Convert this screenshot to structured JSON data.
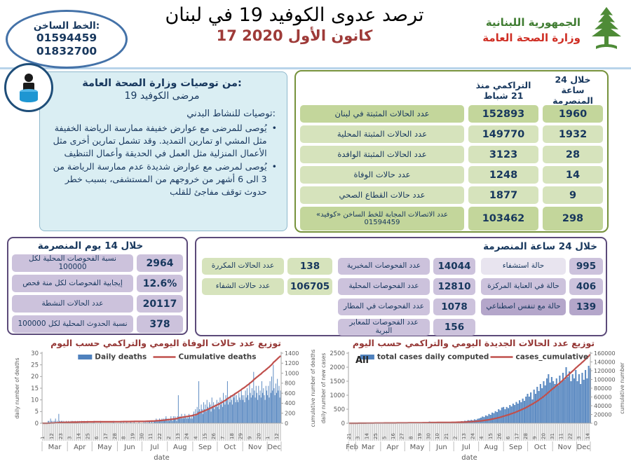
{
  "header": {
    "hotline": {
      "label": "الخط الساخن:",
      "numbers": [
        "01594459",
        "01832700"
      ]
    },
    "title": "ترصد عدوى الكوفيد 19 في لبنان",
    "date": "17 كانون الأول 2020",
    "ministry": {
      "line1": "الجمهورية اللبنانية",
      "line2": "وزارة الصحة العامة"
    }
  },
  "recommendations": {
    "title1": "من توصيات وزارة الصحة العامة:",
    "title2": "مرضى الكوفيد 19",
    "subtitle": "توصيات للنشاط البدني:",
    "bullet_mark": "•",
    "bullets": [
      "يُوصى للمرضى مع عوارض خفيفة ممارسة الرياضة الخفيفة مثل المشي او تمارين التمديد. وقد تشمل تمارين أخرى مثل الأعمال المنزلية مثل العمل في الحديقة وأعمال التنظيف",
      "يُوصى لمرضى مع عوارض شديدة عدم ممارسة الرياضة من 3 الى 6 أشهر من خروجهم من المستشفى، بسبب خطر حدوث توقف مفاجئ للقلب"
    ]
  },
  "stats_table": {
    "col_cumulative": "التراكمي منذ 21 شباط",
    "col_24h": "خلال 24 ساعة المنصرمة",
    "rows": [
      {
        "label": "عدد الحالات المثبتة في لبنان",
        "cumulative": "152893",
        "last24h": "1960",
        "shade": "dark"
      },
      {
        "label": "عدد الحالات المثبتة المحلية",
        "cumulative": "149770",
        "last24h": "1932",
        "shade": "light"
      },
      {
        "label": "عدد الحالات المثبتة الوافدة",
        "cumulative": "3123",
        "last24h": "28",
        "shade": "light"
      },
      {
        "label": "عدد حالات الوفاة",
        "cumulative": "1248",
        "last24h": "14",
        "shade": "light"
      },
      {
        "label": "عدد حالات القطاع الصحي",
        "cumulative": "1877",
        "last24h": "9",
        "shade": "light"
      },
      {
        "label": "عدد الاتصالات المجابة للخط الساخن «كوفيد» 01594459",
        "cumulative": "103462",
        "last24h": "298",
        "shade": "dark"
      }
    ]
  },
  "panel_14d": {
    "title": "خلال 14 يوم المنصرمة",
    "rows": [
      {
        "label": "نسبة الفحوصات  المحلية لكل 100000",
        "value": "2964"
      },
      {
        "label": "إيجابية الفحوصات لكل منة فحص",
        "value": "12.6%"
      },
      {
        "label": "عدد الحالات النشطة",
        "value": "20117"
      },
      {
        "label": "نسبة الحدوث المحلية لكل 100000",
        "value": "378"
      }
    ]
  },
  "panel_24h": {
    "title": "خلال 24 ساعة المنصرمة",
    "recovery_rows": [
      {
        "label": "عدد الحالات المكررة",
        "value": "138"
      },
      {
        "label": "عدد حالات الشفاء",
        "value": "106705"
      }
    ],
    "test_rows": [
      {
        "label": "عدد الفحوصات المخبرية",
        "value": "14044"
      },
      {
        "label": "عدد الفحوصات المحلية",
        "value": "12810"
      },
      {
        "label": "عدد الفحوصات في المطار",
        "value": "1078"
      },
      {
        "label": "عدد الفحوصات للمعابر البرية",
        "value": "156"
      }
    ],
    "hospital_rows": [
      {
        "label": "حالة استشفاء",
        "value": "995",
        "label_shade": "lav-light",
        "value_shade": "lav-mid"
      },
      {
        "label": "حالة في العناية المركزة",
        "value": "406",
        "label_shade": "lav-mid",
        "value_shade": "lav-mid"
      },
      {
        "label": "حالة مع تنفس اصطناعي",
        "value": "139",
        "label_shade": "lav-dark",
        "value_shade": "lav-dark"
      }
    ]
  },
  "colors": {
    "green_dark": "#c3d69b",
    "green_light": "#d6e3bc",
    "green_border": "#76923c",
    "purple_border": "#5b4a79",
    "lavender": "#ccc2dc",
    "navy": "#17375d",
    "bar_blue": "#4f81bd",
    "line_red": "#c0504d",
    "chart_title_red": "#953735",
    "date_red": "#9e3a38",
    "ministry_green": "#3f7c31",
    "ministry_red": "#cf2e24"
  },
  "chart_data": [
    {
      "type": "bar+line",
      "title": "توزيع عدد حالات  الوفاة اليومي والتراكمي حسب اليوم",
      "legend": [
        {
          "name": "Daily deaths",
          "marker": "bar"
        },
        {
          "name": "Cumulative deaths",
          "marker": "line"
        }
      ],
      "ylabel": "daily number of deaths",
      "y2label": "cumulative number of deaths",
      "xlabel": "date",
      "ylim": [
        0,
        30
      ],
      "ystep": 5,
      "y2lim": [
        0,
        1400
      ],
      "y2step": 200,
      "tick_every": 11,
      "day_ticks": [
        "1",
        "12",
        "23",
        "3",
        "14",
        "25",
        "6",
        "17",
        "28",
        "8",
        "19",
        "30",
        "11",
        "22",
        "2",
        "13",
        "24",
        "4",
        "15",
        "26",
        "7",
        "18",
        "29",
        "9",
        "20",
        "1",
        "12"
      ],
      "months": [
        {
          "label": "Mar",
          "days": 31
        },
        {
          "label": "Apr",
          "days": 30
        },
        {
          "label": "May",
          "days": 31
        },
        {
          "label": "Jun",
          "days": 30
        },
        {
          "label": "Jul",
          "days": 31
        },
        {
          "label": "Aug",
          "days": 31
        },
        {
          "label": "Sep",
          "days": 30
        },
        {
          "label": "Oct",
          "days": 31
        },
        {
          "label": "Nov",
          "days": 30
        },
        {
          "label": "Dec",
          "days": 17
        }
      ],
      "sample_step": 1,
      "daily": [
        0,
        0,
        0,
        0,
        0,
        0,
        0,
        1,
        1,
        0,
        2,
        1,
        0,
        1,
        0,
        1,
        2,
        0,
        1,
        0,
        4,
        1,
        0,
        1,
        1,
        0,
        1,
        0,
        0,
        1,
        0,
        0,
        1,
        0,
        0,
        1,
        0,
        1,
        0,
        0,
        1,
        0,
        0,
        1,
        0,
        1,
        0,
        0,
        1,
        0,
        0,
        1,
        0,
        0,
        0,
        1,
        0,
        0,
        0,
        0,
        0,
        0,
        0,
        1,
        0,
        0,
        0,
        0,
        0,
        0,
        0,
        1,
        0,
        0,
        0,
        0,
        0,
        0,
        0,
        0,
        0,
        0,
        0,
        0,
        0,
        0,
        0,
        1,
        0,
        0,
        0,
        0,
        0,
        0,
        0,
        0,
        1,
        0,
        0,
        1,
        0,
        0,
        0,
        1,
        0,
        0,
        0,
        0,
        1,
        0,
        0,
        0,
        1,
        0,
        0,
        0,
        0,
        0,
        1,
        0,
        0,
        0,
        0,
        0,
        1,
        0,
        1,
        0,
        1,
        0,
        1,
        1,
        0,
        1,
        1,
        0,
        1,
        1,
        1,
        2,
        1,
        1,
        1,
        2,
        1,
        1,
        2,
        1,
        2,
        1,
        2,
        3,
        2,
        1,
        2,
        1,
        2,
        3,
        2,
        1,
        3,
        2,
        3,
        2,
        1,
        3,
        12,
        2,
        3,
        2,
        4,
        2,
        3,
        2,
        4,
        3,
        2,
        3,
        2,
        4,
        3,
        2,
        3,
        2,
        4,
        5,
        3,
        6,
        4,
        7,
        5,
        18,
        6,
        5,
        8,
        6,
        4,
        9,
        6,
        8,
        5,
        10,
        7,
        6,
        9,
        8,
        5,
        11,
        7,
        9,
        6,
        8,
        7,
        10,
        7,
        9,
        6,
        11,
        8,
        10,
        7,
        13,
        9,
        8,
        12,
        10,
        18,
        8,
        11,
        9,
        12,
        10,
        8,
        12,
        11,
        13,
        9,
        12,
        10,
        9,
        13,
        11,
        10,
        14,
        12,
        10,
        12,
        9,
        14,
        11,
        15,
        12,
        10,
        17,
        13,
        11,
        15,
        12,
        22,
        14,
        11,
        16,
        13,
        10,
        16,
        12,
        14,
        11,
        18,
        13,
        15,
        12,
        10,
        16,
        14,
        12,
        16,
        11,
        18,
        13,
        20,
        14,
        25,
        15,
        12,
        17,
        13,
        19,
        14,
        16,
        11,
        14
      ],
      "bar_color": "#4f81bd",
      "line_color": "#c0504d"
    },
    {
      "type": "bar+line",
      "title": "توزيع عدد الحالات الجديدة اليومي والتراكمي حسب اليوم",
      "annotation": "All",
      "legend": [
        {
          "name": "total cases daily computed",
          "marker": "bar"
        },
        {
          "name": "cases_cumulative",
          "marker": "line"
        }
      ],
      "ylabel": "daily number of new cases",
      "y2label": "cumulative number",
      "xlabel": "date",
      "ylim": [
        0,
        2500
      ],
      "ystep": 500,
      "y2lim": [
        0,
        160000
      ],
      "y2step": 20000,
      "tick_every": 11,
      "day_ticks": [
        "21",
        "3",
        "14",
        "25",
        "5",
        "16",
        "27",
        "8",
        "19",
        "30",
        "10",
        "21",
        "2",
        "13",
        "24",
        "4",
        "15",
        "26",
        "6",
        "17",
        "28",
        "9",
        "20",
        "31",
        "11",
        "22",
        "3",
        "14"
      ],
      "months": [
        {
          "label": "Feb",
          "days": 9
        },
        {
          "label": "Mar",
          "days": 31
        },
        {
          "label": "Apr",
          "days": 30
        },
        {
          "label": "May",
          "days": 31
        },
        {
          "label": "Jun",
          "days": 30
        },
        {
          "label": "Jul",
          "days": 31
        },
        {
          "label": "Aug",
          "days": 31
        },
        {
          "label": "Sep",
          "days": 30
        },
        {
          "label": "Oct",
          "days": 31
        },
        {
          "label": "Nov",
          "days": 30
        },
        {
          "label": "Dec",
          "days": 17
        }
      ],
      "sample_step": 2,
      "daily": [
        2,
        4,
        3,
        6,
        8,
        10,
        15,
        12,
        18,
        14,
        20,
        16,
        12,
        18,
        15,
        22,
        17,
        13,
        19,
        16,
        8,
        12,
        7,
        10,
        9,
        11,
        8,
        10,
        7,
        12,
        9,
        8,
        10,
        9,
        8,
        12,
        18,
        14,
        20,
        15,
        22,
        16,
        13,
        19,
        15,
        24,
        17,
        14,
        20,
        30,
        60,
        40,
        25,
        18,
        25,
        18,
        14,
        20,
        16,
        24,
        18,
        15,
        21,
        17,
        25,
        20,
        30,
        45,
        60,
        50,
        75,
        65,
        90,
        80,
        110,
        95,
        120,
        100,
        140,
        120,
        160,
        175,
        200,
        240,
        220,
        280,
        260,
        330,
        300,
        380,
        360,
        430,
        400,
        500,
        460,
        560,
        580,
        500,
        580,
        540,
        650,
        600,
        700,
        650,
        760,
        700,
        820,
        750,
        880,
        800,
        950,
        1050,
        950,
        1100,
        850,
        1200,
        1050,
        1300,
        1150,
        1400,
        1250,
        1500,
        1350,
        1600,
        1750,
        1450,
        1650,
        1500,
        1400,
        1600,
        1350,
        1700,
        1500,
        1800,
        1550,
        2000,
        1650,
        1850,
        1500,
        1750,
        1600,
        1900,
        1500,
        1750,
        1400,
        1800,
        1550,
        1900,
        1600,
        2050,
        1960
      ],
      "bar_color": "#4f81bd",
      "line_color": "#c0504d"
    }
  ]
}
